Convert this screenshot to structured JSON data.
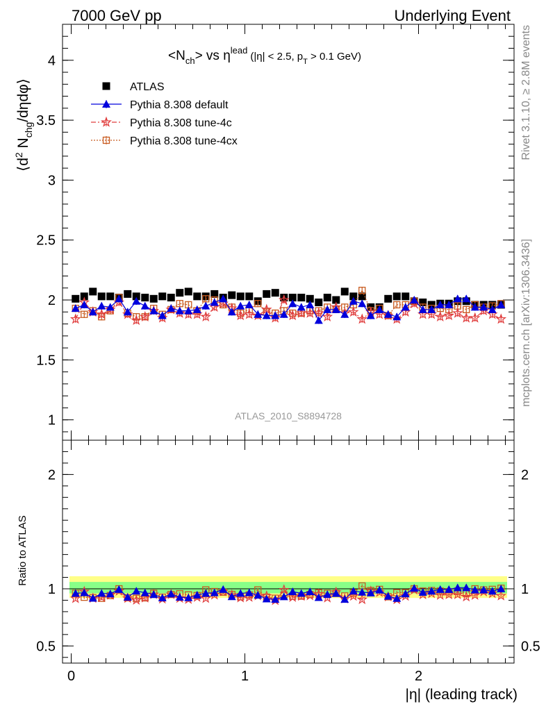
{
  "header": {
    "left": "7000 GeV pp",
    "right": "Underlying Event"
  },
  "side_labels": {
    "rivet": "Rivet 3.1.10, ≥ 2.8M events",
    "mcplots": "mcplots.cern.ch [arXiv:1306.3436]"
  },
  "plot_title": {
    "main_pre": "<N",
    "main_sub": "ch",
    "main_mid": "> vs η",
    "main_sup": "lead",
    "cond_pre": "(|η| < 2.5, p",
    "cond_sub": "T",
    "cond_post": " > 0.1 GeV)"
  },
  "analysis_id": "ATLAS_2010_S8894728",
  "colors": {
    "atlas": "#000000",
    "default": "#0000dd",
    "tune4c": "#e03c3c",
    "tune4cx": "#c85a1e",
    "band_inner": "#88ff88",
    "band_outer": "#ffff88"
  },
  "chart_data": {
    "type": "scatter",
    "xlabel": "|η| (leading track)",
    "ylabel_main": "⟨d² N_chg/dηdφ⟩",
    "ylabel_ratio": "Ratio to ATLAS",
    "xlim": [
      -0.05,
      2.55
    ],
    "ylim_main": [
      0.83,
      4.3
    ],
    "ylim_ratio": [
      0.35,
      2.3
    ],
    "x_ticks": [
      "0",
      "1",
      "2"
    ],
    "y_ticks_main": [
      "1",
      "1.5",
      "2",
      "2.5",
      "3",
      "3.5",
      "4"
    ],
    "y_ticks_ratio": [
      "0.5",
      "1",
      "2"
    ],
    "legend_position": "top-left",
    "x": [
      0.025,
      0.075,
      0.125,
      0.175,
      0.225,
      0.275,
      0.325,
      0.375,
      0.425,
      0.475,
      0.525,
      0.575,
      0.625,
      0.675,
      0.725,
      0.775,
      0.825,
      0.875,
      0.925,
      0.975,
      1.025,
      1.075,
      1.125,
      1.175,
      1.225,
      1.275,
      1.325,
      1.375,
      1.425,
      1.475,
      1.525,
      1.575,
      1.625,
      1.675,
      1.725,
      1.775,
      1.825,
      1.875,
      1.925,
      1.975,
      2.025,
      2.075,
      2.125,
      2.175,
      2.225,
      2.275,
      2.325,
      2.375,
      2.425,
      2.475
    ],
    "series": [
      {
        "name": "ATLAS",
        "values": [
          2.01,
          2.03,
          2.07,
          2.03,
          2.03,
          2.02,
          2.05,
          2.03,
          2.02,
          2.01,
          2.03,
          2.02,
          2.06,
          2.07,
          2.03,
          2.03,
          2.05,
          2.02,
          2.04,
          2.03,
          2.03,
          1.99,
          2.05,
          2.06,
          2.02,
          2.02,
          2.02,
          2.01,
          1.98,
          2.02,
          2.0,
          2.07,
          2.03,
          2.03,
          1.94,
          1.94,
          2.01,
          2.03,
          2.03,
          1.99,
          1.98,
          1.96,
          1.97,
          1.97,
          1.99,
          1.99,
          1.96,
          1.96,
          1.96,
          1.96
        ]
      },
      {
        "name": "Pythia 8.308 default",
        "values": [
          1.93,
          1.96,
          1.9,
          1.95,
          1.94,
          2.01,
          1.9,
          1.99,
          1.95,
          1.91,
          1.87,
          1.93,
          1.91,
          1.91,
          1.92,
          1.95,
          1.98,
          2.01,
          1.9,
          1.95,
          1.96,
          1.88,
          1.87,
          1.87,
          1.88,
          1.97,
          1.94,
          1.96,
          1.83,
          1.92,
          1.92,
          1.88,
          1.99,
          1.97,
          1.87,
          1.92,
          1.88,
          1.86,
          1.94,
          2.0,
          1.92,
          1.92,
          1.96,
          1.96,
          2.01,
          2.01,
          1.94,
          1.94,
          1.92,
          1.96
        ]
      },
      {
        "name": "Pythia 8.308 tune-4c",
        "values": [
          1.84,
          1.98,
          1.9,
          1.88,
          1.92,
          1.98,
          1.88,
          1.83,
          1.86,
          1.91,
          1.85,
          1.92,
          1.89,
          1.88,
          1.88,
          1.86,
          1.94,
          1.97,
          1.93,
          1.87,
          1.88,
          1.87,
          1.92,
          1.85,
          2.0,
          1.87,
          1.89,
          1.89,
          1.89,
          1.86,
          1.94,
          1.89,
          1.9,
          1.84,
          1.9,
          1.88,
          1.87,
          1.84,
          1.9,
          1.97,
          1.88,
          1.88,
          1.86,
          1.87,
          1.89,
          1.85,
          1.85,
          1.91,
          1.88,
          1.84
        ]
      },
      {
        "name": "Pythia 8.308 tune-4cx",
        "values": [
          1.93,
          1.88,
          1.91,
          1.86,
          1.91,
          2.02,
          1.89,
          1.86,
          1.86,
          1.93,
          1.88,
          1.92,
          1.97,
          1.96,
          1.91,
          2.01,
          2.0,
          1.96,
          1.94,
          1.89,
          1.92,
          1.97,
          1.9,
          1.89,
          1.91,
          1.89,
          1.89,
          1.91,
          1.91,
          1.94,
          1.92,
          1.94,
          1.96,
          2.08,
          1.91,
          1.93,
          1.87,
          1.96,
          1.96,
          1.99,
          1.94,
          1.93,
          1.93,
          1.92,
          1.95,
          1.92,
          1.96,
          1.94,
          1.95,
          1.97
        ]
      }
    ]
  }
}
